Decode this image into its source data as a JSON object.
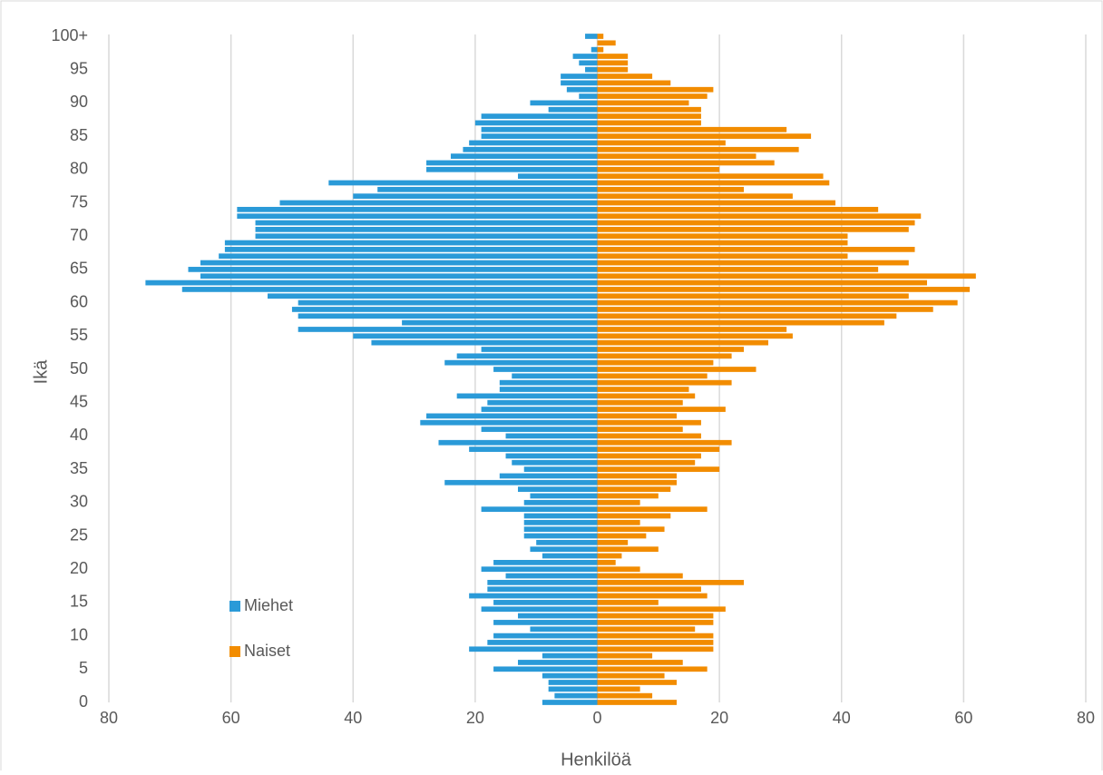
{
  "chart_data": {
    "type": "bar",
    "orientation": "horizontal",
    "xlabel": "Henkilöä",
    "ylabel": "Ikä",
    "categories": [
      "0",
      null,
      null,
      null,
      null,
      "5",
      null,
      null,
      null,
      null,
      "10",
      null,
      null,
      null,
      null,
      "15",
      null,
      null,
      null,
      null,
      "20",
      null,
      null,
      null,
      null,
      "25",
      null,
      null,
      null,
      null,
      "30",
      null,
      null,
      null,
      null,
      "35",
      null,
      null,
      null,
      null,
      "40",
      null,
      null,
      null,
      null,
      "45",
      null,
      null,
      null,
      null,
      "50",
      null,
      null,
      null,
      null,
      "55",
      null,
      null,
      null,
      null,
      "60",
      null,
      null,
      null,
      null,
      "65",
      null,
      null,
      null,
      null,
      "70",
      null,
      null,
      null,
      null,
      "75",
      null,
      null,
      null,
      null,
      "80",
      null,
      null,
      null,
      null,
      "85",
      null,
      null,
      null,
      null,
      "90",
      null,
      null,
      null,
      null,
      "95",
      null,
      null,
      null,
      null,
      "100+"
    ],
    "series": [
      {
        "name": "Miehet",
        "color": "#2a9ad8",
        "values": [
          -9,
          -7,
          -8,
          -8,
          -9,
          -17,
          -13,
          -9,
          -21,
          -18,
          -17,
          -11,
          -17,
          -13,
          -19,
          -17,
          -21,
          -18,
          -18,
          -15,
          -19,
          -17,
          -9,
          -11,
          -10,
          -12,
          -12,
          -12,
          -12,
          -19,
          -12,
          -11,
          -13,
          -25,
          -16,
          -12,
          -14,
          -15,
          -21,
          -26,
          -15,
          -19,
          -29,
          -28,
          -19,
          -18,
          -23,
          -16,
          -16,
          -14,
          -17,
          -25,
          -23,
          -19,
          -37,
          -40,
          -49,
          -32,
          -49,
          -50,
          -49,
          -54,
          -68,
          -74,
          -65,
          -67,
          -65,
          -62,
          -61,
          -61,
          -56,
          -56,
          -56,
          -59,
          -59,
          -52,
          -40,
          -36,
          -44,
          -13,
          -28,
          -28,
          -24,
          -22,
          -21,
          -19,
          -19,
          -20,
          -19,
          -8,
          -11,
          -3,
          -5,
          -6,
          -6,
          -2,
          -3,
          -4,
          -1,
          0,
          -2
        ]
      },
      {
        "name": "Naiset",
        "color": "#f28c00",
        "values": [
          13,
          9,
          7,
          13,
          11,
          18,
          14,
          9,
          19,
          19,
          19,
          16,
          19,
          19,
          21,
          10,
          18,
          17,
          24,
          14,
          7,
          3,
          4,
          10,
          5,
          8,
          11,
          7,
          12,
          18,
          7,
          10,
          12,
          13,
          13,
          20,
          16,
          17,
          20,
          22,
          17,
          14,
          17,
          13,
          21,
          14,
          16,
          15,
          22,
          18,
          26,
          19,
          22,
          24,
          28,
          32,
          31,
          47,
          49,
          55,
          59,
          51,
          61,
          54,
          62,
          46,
          51,
          41,
          52,
          41,
          41,
          51,
          52,
          53,
          46,
          39,
          32,
          24,
          38,
          37,
          20,
          29,
          26,
          33,
          21,
          35,
          31,
          17,
          17,
          17,
          15,
          18,
          19,
          12,
          9,
          5,
          5,
          5,
          1,
          3,
          1
        ]
      }
    ],
    "xlim": [
      -80,
      80
    ],
    "xticks": [
      {
        "value": -80,
        "label": "80"
      },
      {
        "value": -60,
        "label": "60"
      },
      {
        "value": -40,
        "label": "40"
      },
      {
        "value": -20,
        "label": "20"
      },
      0,
      20,
      40,
      60,
      80
    ],
    "grid": true,
    "legend": "lower left"
  }
}
